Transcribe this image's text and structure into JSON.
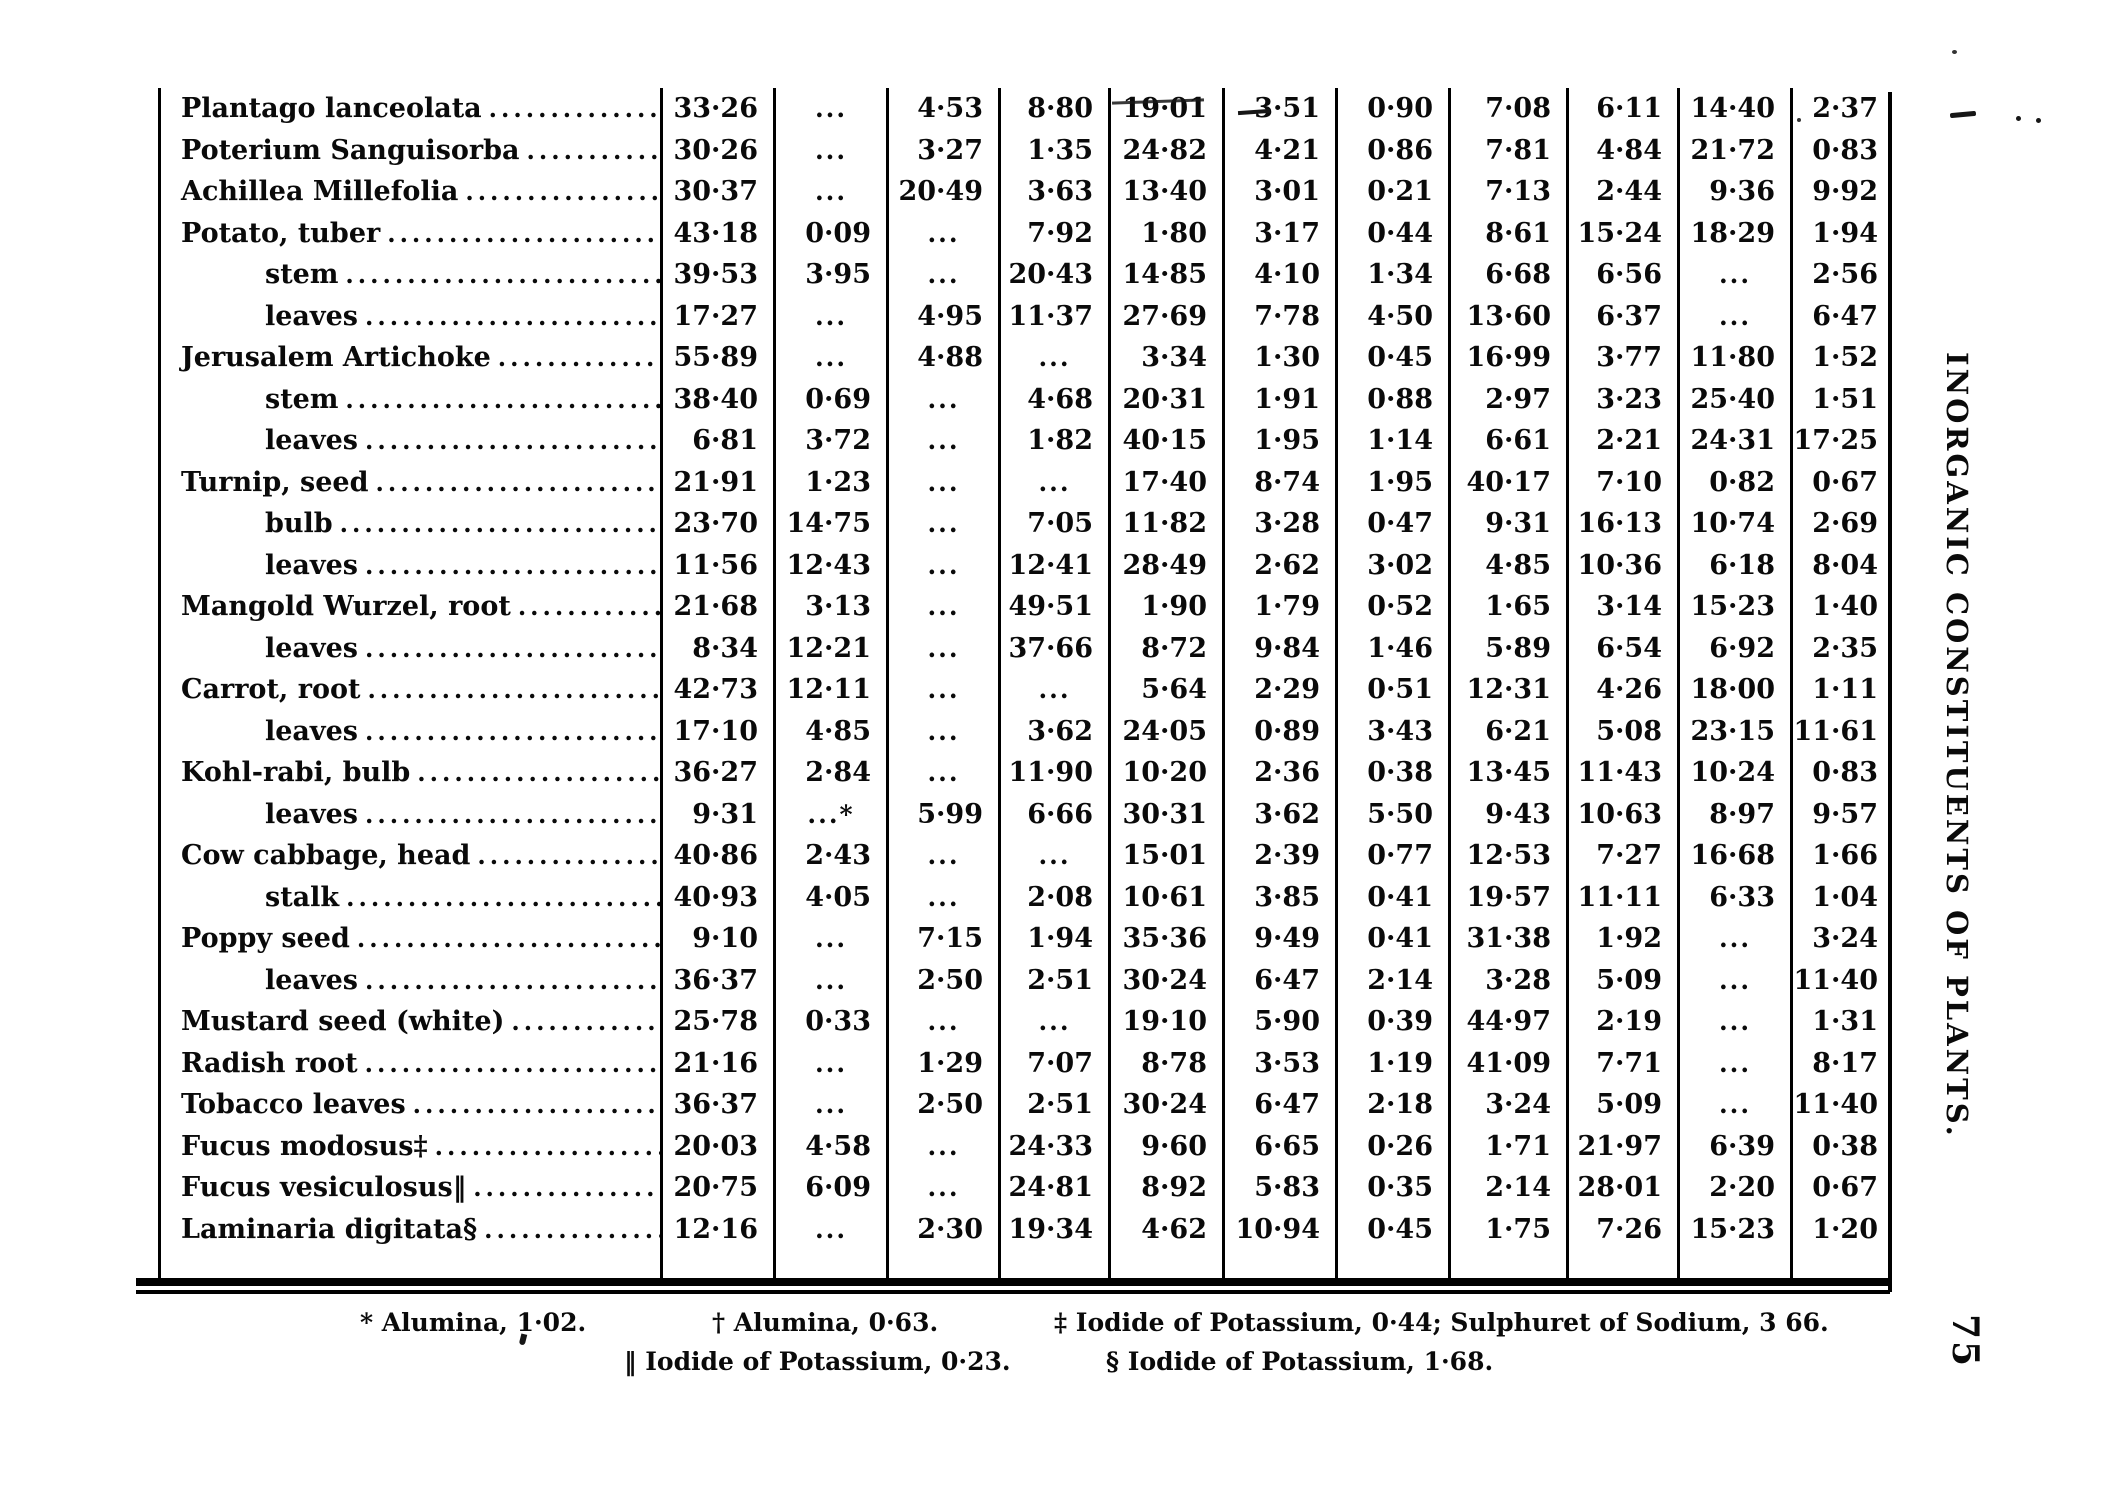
{
  "document": {
    "margin_title": "INORGANIC CONSTITUENTS OF PLANTS.",
    "page_number": "75"
  },
  "table": {
    "rows": [
      {
        "label": "Plantago lanceolata",
        "indent": false,
        "values": [
          "33·26",
          "...",
          "4·53",
          "8·80",
          "19·01",
          "3·51",
          "0·90",
          "7·08",
          "6·11",
          "14·40",
          "2·37"
        ]
      },
      {
        "label": "Poterium Sanguisorba",
        "indent": false,
        "values": [
          "30·26",
          "...",
          "3·27",
          "1·35",
          "24·82",
          "4·21",
          "0·86",
          "7·81",
          "4·84",
          "21·72",
          "0·83"
        ]
      },
      {
        "label": "Achillea Millefolia",
        "indent": false,
        "values": [
          "30·37",
          "...",
          "20·49",
          "3·63",
          "13·40",
          "3·01",
          "0·21",
          "7·13",
          "2·44",
          "9·36",
          "9·92"
        ]
      },
      {
        "label": "Potato, tuber",
        "indent": false,
        "values": [
          "43·18",
          "0·09",
          "...",
          "7·92",
          "1·80",
          "3·17",
          "0·44",
          "8·61",
          "15·24",
          "18·29",
          "1·94"
        ]
      },
      {
        "label": "stem",
        "indent": true,
        "values": [
          "39·53",
          "3·95",
          "...",
          "20·43",
          "14·85",
          "4·10",
          "1·34",
          "6·68",
          "6·56",
          "...",
          "2·56"
        ]
      },
      {
        "label": "leaves",
        "indent": true,
        "values": [
          "17·27",
          "...",
          "4·95",
          "11·37",
          "27·69",
          "7·78",
          "4·50",
          "13·60",
          "6·37",
          "...",
          "6·47"
        ]
      },
      {
        "label": "Jerusalem Artichoke",
        "indent": false,
        "values": [
          "55·89",
          "...",
          "4·88",
          "...",
          "3·34",
          "1·30",
          "0·45",
          "16·99",
          "3·77",
          "11·80",
          "1·52"
        ]
      },
      {
        "label": "stem",
        "indent": true,
        "values": [
          "38·40",
          "0·69",
          "...",
          "4·68",
          "20·31",
          "1·91",
          "0·88",
          "2·97",
          "3·23",
          "25·40",
          "1·51"
        ]
      },
      {
        "label": "leaves",
        "indent": true,
        "values": [
          "6·81",
          "3·72",
          "...",
          "1·82",
          "40·15",
          "1·95",
          "1·14",
          "6·61",
          "2·21",
          "24·31",
          "17·25"
        ]
      },
      {
        "label": "Turnip, seed",
        "indent": false,
        "values": [
          "21·91",
          "1·23",
          "...",
          "...",
          "17·40",
          "8·74",
          "1·95",
          "40·17",
          "7·10",
          "0·82",
          "0·67"
        ]
      },
      {
        "label": "bulb",
        "indent": true,
        "values": [
          "23·70",
          "14·75",
          "...",
          "7·05",
          "11·82",
          "3·28",
          "0·47",
          "9·31",
          "16·13",
          "10·74",
          "2·69"
        ]
      },
      {
        "label": "leaves",
        "indent": true,
        "values": [
          "11·56",
          "12·43",
          "...",
          "12·41",
          "28·49",
          "2·62",
          "3·02",
          "4·85",
          "10·36",
          "6·18",
          "8·04"
        ]
      },
      {
        "label": "Mangold Wurzel, root",
        "indent": false,
        "values": [
          "21·68",
          "3·13",
          "...",
          "49·51",
          "1·90",
          "1·79",
          "0·52",
          "1·65",
          "3·14",
          "15·23",
          "1·40"
        ]
      },
      {
        "label": "leaves",
        "indent": true,
        "values": [
          "8·34",
          "12·21",
          "...",
          "37·66",
          "8·72",
          "9·84",
          "1·46",
          "5·89",
          "6·54",
          "6·92",
          "2·35"
        ]
      },
      {
        "label": "Carrot, root",
        "indent": false,
        "values": [
          "42·73",
          "12·11",
          "...",
          "...",
          "5·64",
          "2·29",
          "0·51",
          "12·31",
          "4·26",
          "18·00",
          "1·11"
        ]
      },
      {
        "label": "leaves",
        "indent": true,
        "values": [
          "17·10",
          "4·85",
          "...",
          "3·62",
          "24·05",
          "0·89",
          "3·43",
          "6·21",
          "5·08",
          "23·15",
          "11·61"
        ]
      },
      {
        "label": "Kohl-rabi, bulb",
        "indent": false,
        "values": [
          "36·27",
          "2·84",
          "...",
          "11·90",
          "10·20",
          "2·36",
          "0·38",
          "13·45",
          "11·43",
          "10·24",
          "0·83"
        ]
      },
      {
        "label": "leaves",
        "indent": true,
        "values": [
          "9·31",
          "...*",
          "5·99",
          "6·66",
          "30·31",
          "3·62",
          "5·50",
          "9·43",
          "10·63",
          "8·97",
          "9·57"
        ]
      },
      {
        "label": "Cow cabbage, head",
        "indent": false,
        "values": [
          "40·86",
          "2·43",
          "...",
          "...",
          "15·01",
          "2·39",
          "0·77",
          "12·53",
          "7·27",
          "16·68",
          "1·66"
        ]
      },
      {
        "label": "stalk",
        "indent": true,
        "values": [
          "40·93",
          "4·05",
          "...",
          "2·08",
          "10·61",
          "3·85",
          "0·41",
          "19·57",
          "11·11",
          "6·33",
          "1·04"
        ]
      },
      {
        "label": "Poppy seed",
        "indent": false,
        "values": [
          "9·10",
          "...",
          "7·15",
          "1·94",
          "35·36",
          "9·49",
          "0·41",
          "31·38",
          "1·92",
          "...",
          "3·24"
        ]
      },
      {
        "label": "leaves",
        "indent": true,
        "values": [
          "36·37",
          "...",
          "2·50",
          "2·51",
          "30·24",
          "6·47",
          "2·14",
          "3·28",
          "5·09",
          "...",
          "11·40"
        ]
      },
      {
        "label": "Mustard seed (white)",
        "indent": false,
        "values": [
          "25·78",
          "0·33",
          "...",
          "...",
          "19·10",
          "5·90",
          "0·39",
          "44·97",
          "2·19",
          "...",
          "1·31"
        ]
      },
      {
        "label": "Radish root",
        "indent": false,
        "values": [
          "21·16",
          "...",
          "1·29",
          "7·07",
          "8·78",
          "3·53",
          "1·19",
          "41·09",
          "7·71",
          "...",
          "8·17"
        ]
      },
      {
        "label": "Tobacco leaves",
        "indent": false,
        "values": [
          "36·37",
          "...",
          "2·50",
          "2·51",
          "30·24",
          "6·47",
          "2·18",
          "3·24",
          "5·09",
          "...",
          "11·40"
        ]
      },
      {
        "label": "Fucus modosus‡",
        "indent": false,
        "values": [
          "20·03",
          "4·58",
          "...",
          "24·33",
          "9·60",
          "6·65",
          "0·26",
          "1·71",
          "21·97",
          "6·39",
          "0·38"
        ]
      },
      {
        "label": "Fucus vesiculosus‖",
        "indent": false,
        "values": [
          "20·75",
          "6·09",
          "...",
          "24·81",
          "8·92",
          "5·83",
          "0·35",
          "2·14",
          "28·01",
          "2·20",
          "0·67"
        ]
      },
      {
        "label": "Laminaria digitata§",
        "indent": false,
        "values": [
          "12·16",
          "...",
          "2·30",
          "19·34",
          "4·62",
          "10·94",
          "0·45",
          "1·75",
          "7·26",
          "15·23",
          "1·20"
        ]
      }
    ]
  },
  "footnotes": [
    "* Alumina, 1·02.",
    "† Alumina, 0·63.",
    "‡ Iodide of Potassium, 0·44; Sulphuret of Sodium, 3 66.",
    "‖ Iodide of Potassium, 0·23.",
    "§ Iodide of Potassium, 1·68."
  ]
}
